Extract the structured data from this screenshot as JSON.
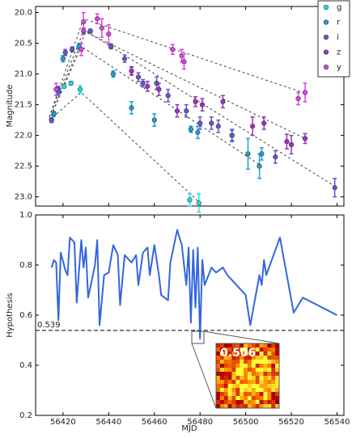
{
  "chart_data": [
    {
      "type": "scatter",
      "ylabel": "Magnitude",
      "y_inverted": true,
      "xlim": [
        56408,
        56543
      ],
      "xticks": [
        56420,
        56440,
        56460,
        56480,
        56500,
        56520,
        56540
      ],
      "ylim": [
        19.9,
        23.15
      ],
      "yticks": [
        {
          "value": 20,
          "label": "20.0"
        },
        20.5,
        {
          "value": 21,
          "label": "21.0"
        },
        21.5,
        {
          "value": 22,
          "label": "22.0"
        },
        22.5,
        {
          "value": 23,
          "label": "23.0"
        }
      ],
      "legend": "upper right",
      "series": [
        {
          "name": "g",
          "color": "#22dddd",
          "x": [
            56420.5,
            56423.5,
            56427.5,
            56475.5,
            56479.5
          ],
          "values": [
            21.2,
            21.15,
            21.25,
            23.05,
            23.1
          ],
          "errors": [
            0.03,
            0.03,
            0.06,
            0.1,
            0.15
          ]
        },
        {
          "name": "r",
          "color": "#1f9fd0",
          "x": [
            56416,
            56418,
            56420,
            56427,
            56442,
            56450,
            56460,
            56476,
            56479,
            56494,
            56501,
            56506,
            56507
          ],
          "values": [
            21.65,
            21.3,
            20.75,
            20.55,
            21.0,
            21.55,
            21.75,
            21.9,
            21.95,
            22.0,
            22.3,
            22.5,
            22.3
          ],
          "errors": [
            0.04,
            0.05,
            0.05,
            0.05,
            0.05,
            0.1,
            0.1,
            0.05,
            0.1,
            0.08,
            0.25,
            0.2,
            0.1
          ]
        },
        {
          "name": "i",
          "color": "#6655cc",
          "x": [
            56415,
            56418,
            56421,
            56424,
            56432,
            56441,
            56447,
            56450,
            56453,
            56455,
            56461,
            56466,
            56474,
            56480,
            56485,
            56488,
            56494,
            56513,
            56539
          ],
          "values": [
            21.75,
            21.25,
            20.65,
            20.6,
            20.3,
            20.55,
            20.75,
            20.95,
            21.05,
            21.15,
            21.15,
            21.35,
            21.6,
            21.8,
            21.8,
            21.85,
            22.0,
            22.35,
            22.85
          ],
          "errors": [
            0.04,
            0.05,
            0.05,
            0.04,
            0.03,
            0.04,
            0.06,
            0.06,
            0.07,
            0.06,
            0.1,
            0.1,
            0.1,
            0.1,
            0.1,
            0.1,
            0.1,
            0.1,
            0.15
          ]
        },
        {
          "name": "z",
          "color": "#9933bb",
          "x": [
            56429,
            56450,
            56457,
            56462,
            56470,
            56478,
            56481,
            56490,
            56503,
            56508,
            56518,
            56520,
            56526
          ],
          "values": [
            20.3,
            20.95,
            21.2,
            21.25,
            21.6,
            21.45,
            21.5,
            21.45,
            21.85,
            21.8,
            22.1,
            22.15,
            22.05
          ],
          "errors": [
            0.05,
            0.07,
            0.08,
            0.1,
            0.1,
            0.08,
            0.1,
            0.1,
            0.15,
            0.1,
            0.12,
            0.15,
            0.08
          ]
        },
        {
          "name": "y",
          "color": "#dd44dd",
          "x": [
            56417,
            56428,
            56429,
            56435,
            56437,
            56440,
            56468,
            56472,
            56473,
            56523,
            56526
          ],
          "values": [
            21.25,
            20.6,
            20.15,
            20.1,
            20.25,
            20.35,
            20.6,
            20.7,
            20.8,
            21.4,
            21.3
          ],
          "errors": [
            0.1,
            0.1,
            0.15,
            0.08,
            0.15,
            0.15,
            0.08,
            0.1,
            0.12,
            0.1,
            0.15
          ]
        }
      ],
      "model_lines": [
        {
          "x": [
            56414,
            56429,
            56525
          ],
          "values": [
            21.7,
            20.1,
            21.3
          ]
        },
        {
          "x": [
            56414,
            56429,
            56526
          ],
          "values": [
            21.7,
            20.3,
            22.05
          ]
        },
        {
          "x": [
            56414,
            56430,
            56540
          ],
          "values": [
            21.75,
            20.3,
            22.85
          ]
        },
        {
          "x": [
            56414,
            56428,
            56507
          ],
          "values": [
            21.75,
            20.55,
            22.5
          ]
        },
        {
          "x": [
            56414,
            56428,
            56480
          ],
          "values": [
            21.75,
            21.3,
            23.1
          ]
        }
      ]
    },
    {
      "type": "line",
      "xlabel": "MJD",
      "ylabel": "Hypothesis",
      "color": "#3366dd",
      "xlim": [
        56408,
        56543
      ],
      "xticks": [
        56420,
        56440,
        56460,
        56480,
        56500,
        56520,
        56540
      ],
      "ylim": [
        0.2,
        1.0
      ],
      "yticks": [
        0.2,
        0.4,
        0.6,
        0.8,
        {
          "value": 1.0,
          "label": "1.0"
        }
      ],
      "x": [
        56415,
        56416,
        56417,
        56418,
        56419,
        56421,
        56422,
        56423,
        56424,
        56425,
        56426,
        56428,
        56429,
        56430,
        56431,
        56434,
        56435,
        56436,
        56438,
        56440,
        56442,
        56444,
        56445,
        56447,
        56449,
        56450,
        56452,
        56453,
        56455,
        56457,
        56458,
        56460,
        56462,
        56463,
        56466,
        56467,
        56470,
        56472,
        56474,
        56475,
        56476,
        56477,
        56478,
        56479,
        56480,
        56481,
        56482,
        56485,
        56487,
        56490,
        56492,
        56500,
        56502,
        56506,
        56507,
        56508,
        56509,
        56515,
        56521,
        56525,
        56540
      ],
      "values": [
        0.79,
        0.82,
        0.81,
        0.58,
        0.85,
        0.78,
        0.76,
        0.91,
        0.9,
        0.89,
        0.65,
        0.9,
        0.79,
        0.87,
        0.67,
        0.8,
        0.9,
        0.56,
        0.76,
        0.77,
        0.88,
        0.84,
        0.64,
        0.84,
        0.82,
        0.81,
        0.84,
        0.72,
        0.85,
        0.87,
        0.76,
        0.88,
        0.76,
        0.68,
        0.66,
        0.81,
        0.94,
        0.88,
        0.72,
        0.87,
        0.57,
        0.86,
        0.63,
        0.87,
        0.506,
        0.82,
        0.72,
        0.79,
        0.77,
        0.79,
        0.76,
        0.68,
        0.56,
        0.76,
        0.72,
        0.82,
        0.76,
        0.91,
        0.61,
        0.67,
        0.6
      ],
      "threshold": 0.539,
      "inset_value": 0.506
    }
  ]
}
